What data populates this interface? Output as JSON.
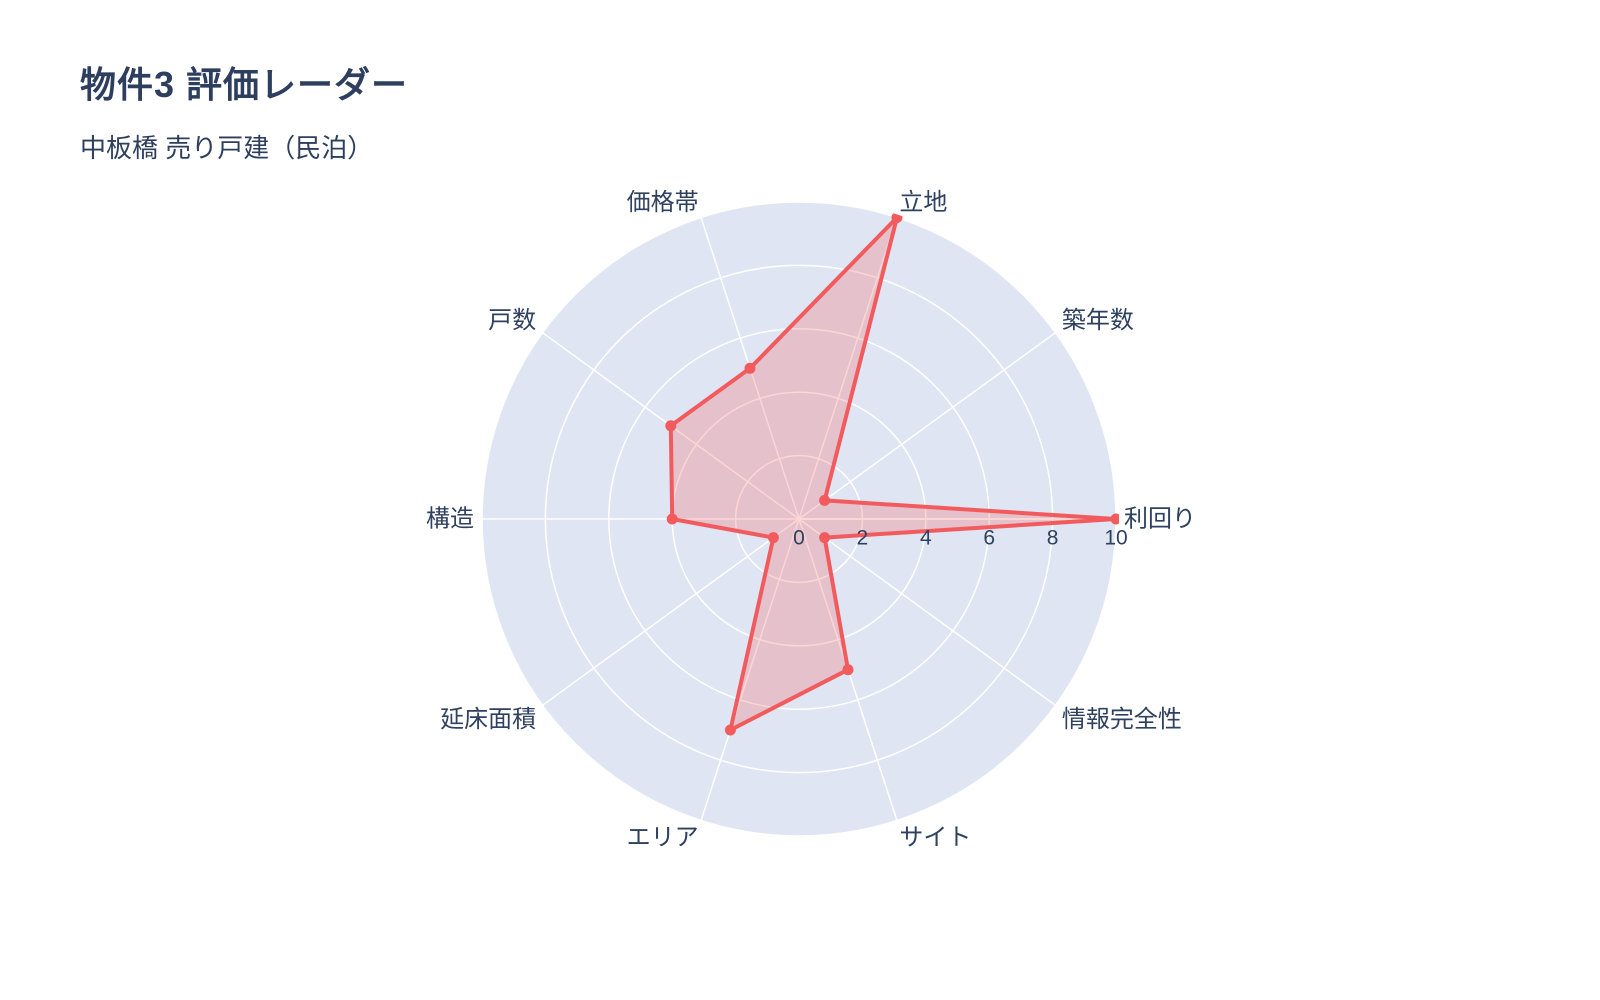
{
  "header": {
    "title": "物件3 評価レーダー",
    "subtitle": "中板橋 売り戸建（民泊）"
  },
  "chart_data": {
    "type": "radar",
    "title": "物件3 評価レーダー",
    "subtitle": "中板橋 売り戸建（民泊）",
    "categories": [
      "利回り",
      "築年数",
      "立地",
      "価格帯",
      "戸数",
      "構造",
      "延床面積",
      "エリア",
      "サイト",
      "情報完全性"
    ],
    "series": [
      {
        "name": "物件3",
        "values": [
          10,
          1,
          10,
          5,
          5,
          4,
          1,
          7,
          5,
          1
        ]
      }
    ],
    "radial_range": [
      0,
      10
    ],
    "radial_ticks": [
      "0",
      "2",
      "4",
      "6",
      "8",
      "10"
    ],
    "radial_tick_values": [
      0,
      2,
      4,
      6,
      8,
      10
    ],
    "angle_start_deg": 0,
    "direction": "counterclockwise",
    "grid": "on",
    "legend": "none",
    "colors": {
      "line": "#f25b5e",
      "fill": "rgba(242, 91, 94, 0.26)",
      "disc_background": "#dfe5f2",
      "grid_line": "#ffffff",
      "text": "#2f4160",
      "title_text": "#2d3e5e"
    }
  }
}
